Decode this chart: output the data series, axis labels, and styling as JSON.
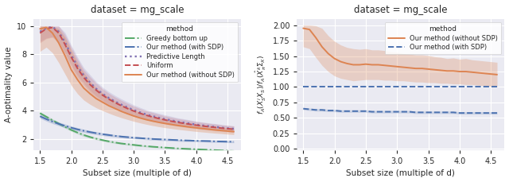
{
  "title": "dataset = mg_scale",
  "xlabel": "Subset size (multiple of d)",
  "ylabel_left": "A-optimality value",
  "x": [
    1.5,
    1.6,
    1.7,
    1.8,
    1.9,
    2.0,
    2.1,
    2.2,
    2.3,
    2.4,
    2.5,
    2.6,
    2.7,
    2.8,
    2.9,
    3.0,
    3.1,
    3.2,
    3.3,
    3.4,
    3.5,
    3.6,
    3.7,
    3.8,
    3.9,
    4.0,
    4.1,
    4.2,
    4.3,
    4.4,
    4.5,
    4.6
  ],
  "left": {
    "our_sdp_mean": [
      3.6,
      3.4,
      3.22,
      3.06,
      2.92,
      2.79,
      2.67,
      2.57,
      2.48,
      2.4,
      2.33,
      2.27,
      2.21,
      2.16,
      2.12,
      2.08,
      2.05,
      2.02,
      1.99,
      1.97,
      1.95,
      1.93,
      1.91,
      1.89,
      1.88,
      1.86,
      1.85,
      1.84,
      1.82,
      1.81,
      1.8,
      1.79
    ],
    "our_sdp_lower": [
      3.45,
      3.26,
      3.08,
      2.93,
      2.79,
      2.67,
      2.55,
      2.46,
      2.37,
      2.3,
      2.23,
      2.17,
      2.12,
      2.07,
      2.03,
      2.0,
      1.97,
      1.94,
      1.91,
      1.89,
      1.87,
      1.85,
      1.83,
      1.81,
      1.8,
      1.79,
      1.78,
      1.76,
      1.75,
      1.74,
      1.73,
      1.72
    ],
    "our_sdp_upper": [
      3.75,
      3.54,
      3.36,
      3.19,
      3.05,
      2.91,
      2.79,
      2.68,
      2.59,
      2.5,
      2.43,
      2.37,
      2.3,
      2.25,
      2.21,
      2.16,
      2.13,
      2.1,
      2.07,
      2.05,
      2.03,
      2.01,
      1.99,
      1.97,
      1.96,
      1.93,
      1.92,
      1.92,
      1.89,
      1.88,
      1.87,
      1.86
    ],
    "our_nosdp_mean": [
      9.8,
      9.9,
      9.5,
      8.8,
      7.9,
      6.9,
      6.2,
      5.6,
      5.2,
      4.85,
      4.6,
      4.35,
      4.15,
      3.95,
      3.78,
      3.62,
      3.48,
      3.36,
      3.26,
      3.17,
      3.09,
      3.02,
      2.95,
      2.89,
      2.83,
      2.78,
      2.73,
      2.68,
      2.63,
      2.59,
      2.55,
      2.51
    ],
    "our_nosdp_lower": [
      8.2,
      8.5,
      8.1,
      7.4,
      6.6,
      5.8,
      5.2,
      4.75,
      4.45,
      4.2,
      4.0,
      3.82,
      3.65,
      3.5,
      3.37,
      3.24,
      3.13,
      3.03,
      2.94,
      2.86,
      2.79,
      2.73,
      2.67,
      2.62,
      2.57,
      2.52,
      2.48,
      2.44,
      2.4,
      2.37,
      2.33,
      2.3
    ],
    "our_nosdp_upper": [
      10.0,
      10.0,
      10.0,
      9.8,
      9.2,
      8.3,
      7.4,
      6.7,
      6.1,
      5.6,
      5.25,
      4.95,
      4.7,
      4.45,
      4.25,
      4.05,
      3.88,
      3.73,
      3.6,
      3.49,
      3.38,
      3.3,
      3.22,
      3.15,
      3.08,
      3.02,
      2.97,
      2.91,
      2.86,
      2.81,
      2.77,
      2.72
    ],
    "greedy_mean": [
      3.82,
      3.57,
      3.32,
      3.08,
      2.85,
      2.63,
      2.44,
      2.27,
      2.13,
      2.01,
      1.91,
      1.82,
      1.74,
      1.67,
      1.62,
      1.57,
      1.52,
      1.48,
      1.44,
      1.41,
      1.38,
      1.35,
      1.32,
      1.3,
      1.28,
      1.26,
      1.24,
      1.22,
      1.2,
      1.18,
      1.16,
      1.14
    ],
    "greedy_lower": [
      3.72,
      3.47,
      3.22,
      2.98,
      2.75,
      2.53,
      2.34,
      2.17,
      2.04,
      1.93,
      1.83,
      1.74,
      1.67,
      1.6,
      1.55,
      1.5,
      1.46,
      1.42,
      1.38,
      1.35,
      1.32,
      1.29,
      1.27,
      1.25,
      1.23,
      1.21,
      1.19,
      1.17,
      1.16,
      1.14,
      1.12,
      1.1
    ],
    "greedy_upper": [
      3.92,
      3.67,
      3.42,
      3.18,
      2.95,
      2.73,
      2.54,
      2.37,
      2.22,
      2.09,
      1.99,
      1.9,
      1.81,
      1.74,
      1.69,
      1.64,
      1.58,
      1.54,
      1.5,
      1.47,
      1.44,
      1.41,
      1.37,
      1.35,
      1.33,
      1.31,
      1.29,
      1.27,
      1.24,
      1.22,
      1.2,
      1.18
    ],
    "uniform_mean": [
      9.5,
      9.8,
      9.9,
      9.5,
      8.7,
      7.8,
      7.0,
      6.35,
      5.85,
      5.45,
      5.1,
      4.82,
      4.57,
      4.35,
      4.15,
      3.97,
      3.81,
      3.67,
      3.55,
      3.44,
      3.34,
      3.25,
      3.17,
      3.1,
      3.03,
      2.97,
      2.91,
      2.86,
      2.81,
      2.76,
      2.72,
      2.68
    ],
    "uniform_lower": [
      8.8,
      9.1,
      9.2,
      8.8,
      8.0,
      7.1,
      6.35,
      5.8,
      5.3,
      4.95,
      4.65,
      4.4,
      4.17,
      3.97,
      3.79,
      3.62,
      3.48,
      3.35,
      3.24,
      3.14,
      3.05,
      2.97,
      2.9,
      2.83,
      2.77,
      2.72,
      2.66,
      2.62,
      2.57,
      2.53,
      2.49,
      2.45
    ],
    "uniform_upper": [
      10.0,
      10.0,
      10.0,
      10.0,
      9.4,
      8.5,
      7.65,
      6.9,
      6.4,
      5.95,
      5.55,
      5.24,
      4.97,
      4.73,
      4.51,
      4.32,
      4.14,
      3.99,
      3.86,
      3.74,
      3.63,
      3.53,
      3.44,
      3.37,
      3.29,
      3.22,
      3.16,
      3.1,
      3.05,
      2.99,
      2.95,
      2.91
    ],
    "predlen_mean": [
      9.6,
      9.85,
      9.95,
      9.6,
      8.85,
      7.95,
      7.15,
      6.5,
      6.0,
      5.55,
      5.2,
      4.9,
      4.65,
      4.43,
      4.23,
      4.04,
      3.88,
      3.73,
      3.61,
      3.5,
      3.4,
      3.31,
      3.22,
      3.15,
      3.08,
      3.01,
      2.95,
      2.9,
      2.85,
      2.8,
      2.75,
      2.71
    ],
    "predlen_lower": [
      8.9,
      9.15,
      9.25,
      8.9,
      8.15,
      7.25,
      6.5,
      5.95,
      5.45,
      5.05,
      4.73,
      4.45,
      4.22,
      4.02,
      3.84,
      3.67,
      3.53,
      3.4,
      3.29,
      3.19,
      3.1,
      3.02,
      2.95,
      2.88,
      2.82,
      2.77,
      2.71,
      2.67,
      2.62,
      2.58,
      2.54,
      2.5
    ],
    "predlen_upper": [
      10.0,
      10.0,
      10.0,
      10.0,
      9.55,
      8.65,
      7.8,
      7.05,
      6.55,
      6.05,
      5.67,
      5.35,
      5.08,
      4.84,
      4.62,
      4.41,
      4.23,
      4.06,
      3.93,
      3.81,
      3.7,
      3.6,
      3.49,
      3.42,
      3.34,
      3.25,
      3.19,
      3.13,
      3.08,
      3.02,
      2.96,
      2.92
    ]
  },
  "right": {
    "our_sdp_ratio_mean": [
      1.0,
      1.0,
      1.0,
      1.0,
      1.0,
      1.0,
      1.0,
      1.0,
      1.0,
      1.0,
      1.0,
      1.0,
      1.0,
      1.0,
      1.0,
      1.0,
      1.0,
      1.0,
      1.0,
      1.0,
      1.0,
      1.0,
      1.0,
      1.0,
      1.0,
      1.0,
      1.0,
      1.0,
      1.0,
      1.0,
      1.0,
      1.0
    ],
    "our_sdp_lower_line": [
      0.65,
      0.64,
      0.63,
      0.63,
      0.62,
      0.62,
      0.61,
      0.61,
      0.61,
      0.61,
      0.61,
      0.6,
      0.6,
      0.6,
      0.6,
      0.6,
      0.6,
      0.6,
      0.59,
      0.59,
      0.59,
      0.59,
      0.59,
      0.59,
      0.59,
      0.58,
      0.58,
      0.58,
      0.58,
      0.58,
      0.58,
      0.58
    ],
    "our_sdp_lower_lo": [
      0.63,
      0.62,
      0.61,
      0.61,
      0.6,
      0.6,
      0.59,
      0.59,
      0.59,
      0.59,
      0.59,
      0.58,
      0.58,
      0.58,
      0.58,
      0.58,
      0.58,
      0.58,
      0.57,
      0.57,
      0.57,
      0.57,
      0.57,
      0.57,
      0.57,
      0.56,
      0.56,
      0.56,
      0.56,
      0.56,
      0.56,
      0.56
    ],
    "our_sdp_lower_hi": [
      0.67,
      0.66,
      0.65,
      0.65,
      0.64,
      0.64,
      0.63,
      0.63,
      0.63,
      0.63,
      0.63,
      0.62,
      0.62,
      0.62,
      0.62,
      0.62,
      0.62,
      0.62,
      0.61,
      0.61,
      0.61,
      0.61,
      0.61,
      0.61,
      0.61,
      0.6,
      0.6,
      0.6,
      0.6,
      0.6,
      0.6,
      0.6
    ],
    "our_nosdp_mean": [
      1.95,
      1.93,
      1.8,
      1.65,
      1.54,
      1.46,
      1.41,
      1.38,
      1.36,
      1.36,
      1.37,
      1.36,
      1.36,
      1.35,
      1.34,
      1.33,
      1.32,
      1.31,
      1.3,
      1.3,
      1.29,
      1.28,
      1.27,
      1.26,
      1.26,
      1.25,
      1.25,
      1.24,
      1.23,
      1.22,
      1.21,
      1.2
    ],
    "our_nosdp_lower": [
      1.65,
      1.62,
      1.48,
      1.35,
      1.25,
      1.18,
      1.14,
      1.12,
      1.1,
      1.11,
      1.12,
      1.12,
      1.12,
      1.11,
      1.11,
      1.1,
      1.1,
      1.09,
      1.08,
      1.08,
      1.07,
      1.07,
      1.06,
      1.06,
      1.05,
      1.05,
      1.04,
      1.04,
      1.03,
      1.02,
      1.01,
      1.0
    ],
    "our_nosdp_upper": [
      2.0,
      2.0,
      1.99,
      1.95,
      1.83,
      1.74,
      1.68,
      1.64,
      1.62,
      1.61,
      1.62,
      1.6,
      1.6,
      1.59,
      1.57,
      1.56,
      1.54,
      1.53,
      1.52,
      1.52,
      1.51,
      1.49,
      1.48,
      1.46,
      1.47,
      1.45,
      1.46,
      1.44,
      1.43,
      1.42,
      1.41,
      1.4
    ]
  },
  "colors": {
    "our_sdp": "#4c72b0",
    "our_nosdp": "#dd8452",
    "greedy": "#55a868",
    "uniform": "#c44e52",
    "predlen": "#8172b3"
  },
  "left_ylim": [
    1.2,
    10.5
  ],
  "left_yticks": [
    2,
    4,
    6,
    8,
    10
  ],
  "right_ylim": [
    -0.02,
    2.1
  ],
  "right_yticks": [
    0.0,
    0.25,
    0.5,
    0.75,
    1.0,
    1.25,
    1.5,
    1.75,
    2.0
  ],
  "xlim": [
    1.4,
    4.72
  ],
  "xticks": [
    1.5,
    2.0,
    2.5,
    3.0,
    3.5,
    4.0,
    4.5
  ]
}
